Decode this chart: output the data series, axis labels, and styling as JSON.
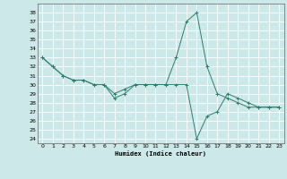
{
  "title": "",
  "xlabel": "Humidex (Indice chaleur)",
  "bg_color": "#cce8e8",
  "grid_color": "#ffffff",
  "line_color": "#2e7d6e",
  "series1_x": [
    0,
    1,
    2,
    3,
    4,
    5,
    6,
    7,
    8,
    9,
    10,
    11,
    12,
    13,
    14,
    15,
    16,
    17,
    18,
    19,
    20,
    21,
    22,
    23
  ],
  "series1_y": [
    33,
    32,
    31,
    30.5,
    30.5,
    30,
    30,
    29,
    29.5,
    30,
    30,
    30,
    30,
    33,
    37,
    38,
    32,
    29,
    28.5,
    28,
    27.5,
    27.5,
    27.5,
    27.5
  ],
  "series2_x": [
    0,
    1,
    2,
    3,
    4,
    5,
    6,
    7,
    8,
    9,
    10,
    11,
    12,
    13,
    14,
    15,
    16,
    17,
    18,
    19,
    20,
    21,
    22,
    23
  ],
  "series2_y": [
    33,
    32,
    31,
    30.5,
    30.5,
    30,
    30,
    28.5,
    29,
    30,
    30,
    30,
    30,
    30,
    30,
    24,
    26.5,
    27,
    29,
    28.5,
    28,
    27.5,
    27.5,
    27.5
  ],
  "xlim": [
    -0.5,
    23.5
  ],
  "ylim": [
    23.5,
    39.0
  ],
  "yticks": [
    24,
    25,
    26,
    27,
    28,
    29,
    30,
    31,
    32,
    33,
    34,
    35,
    36,
    37,
    38
  ],
  "xticks": [
    0,
    1,
    2,
    3,
    4,
    5,
    6,
    7,
    8,
    9,
    10,
    11,
    12,
    13,
    14,
    15,
    16,
    17,
    18,
    19,
    20,
    21,
    22,
    23
  ]
}
